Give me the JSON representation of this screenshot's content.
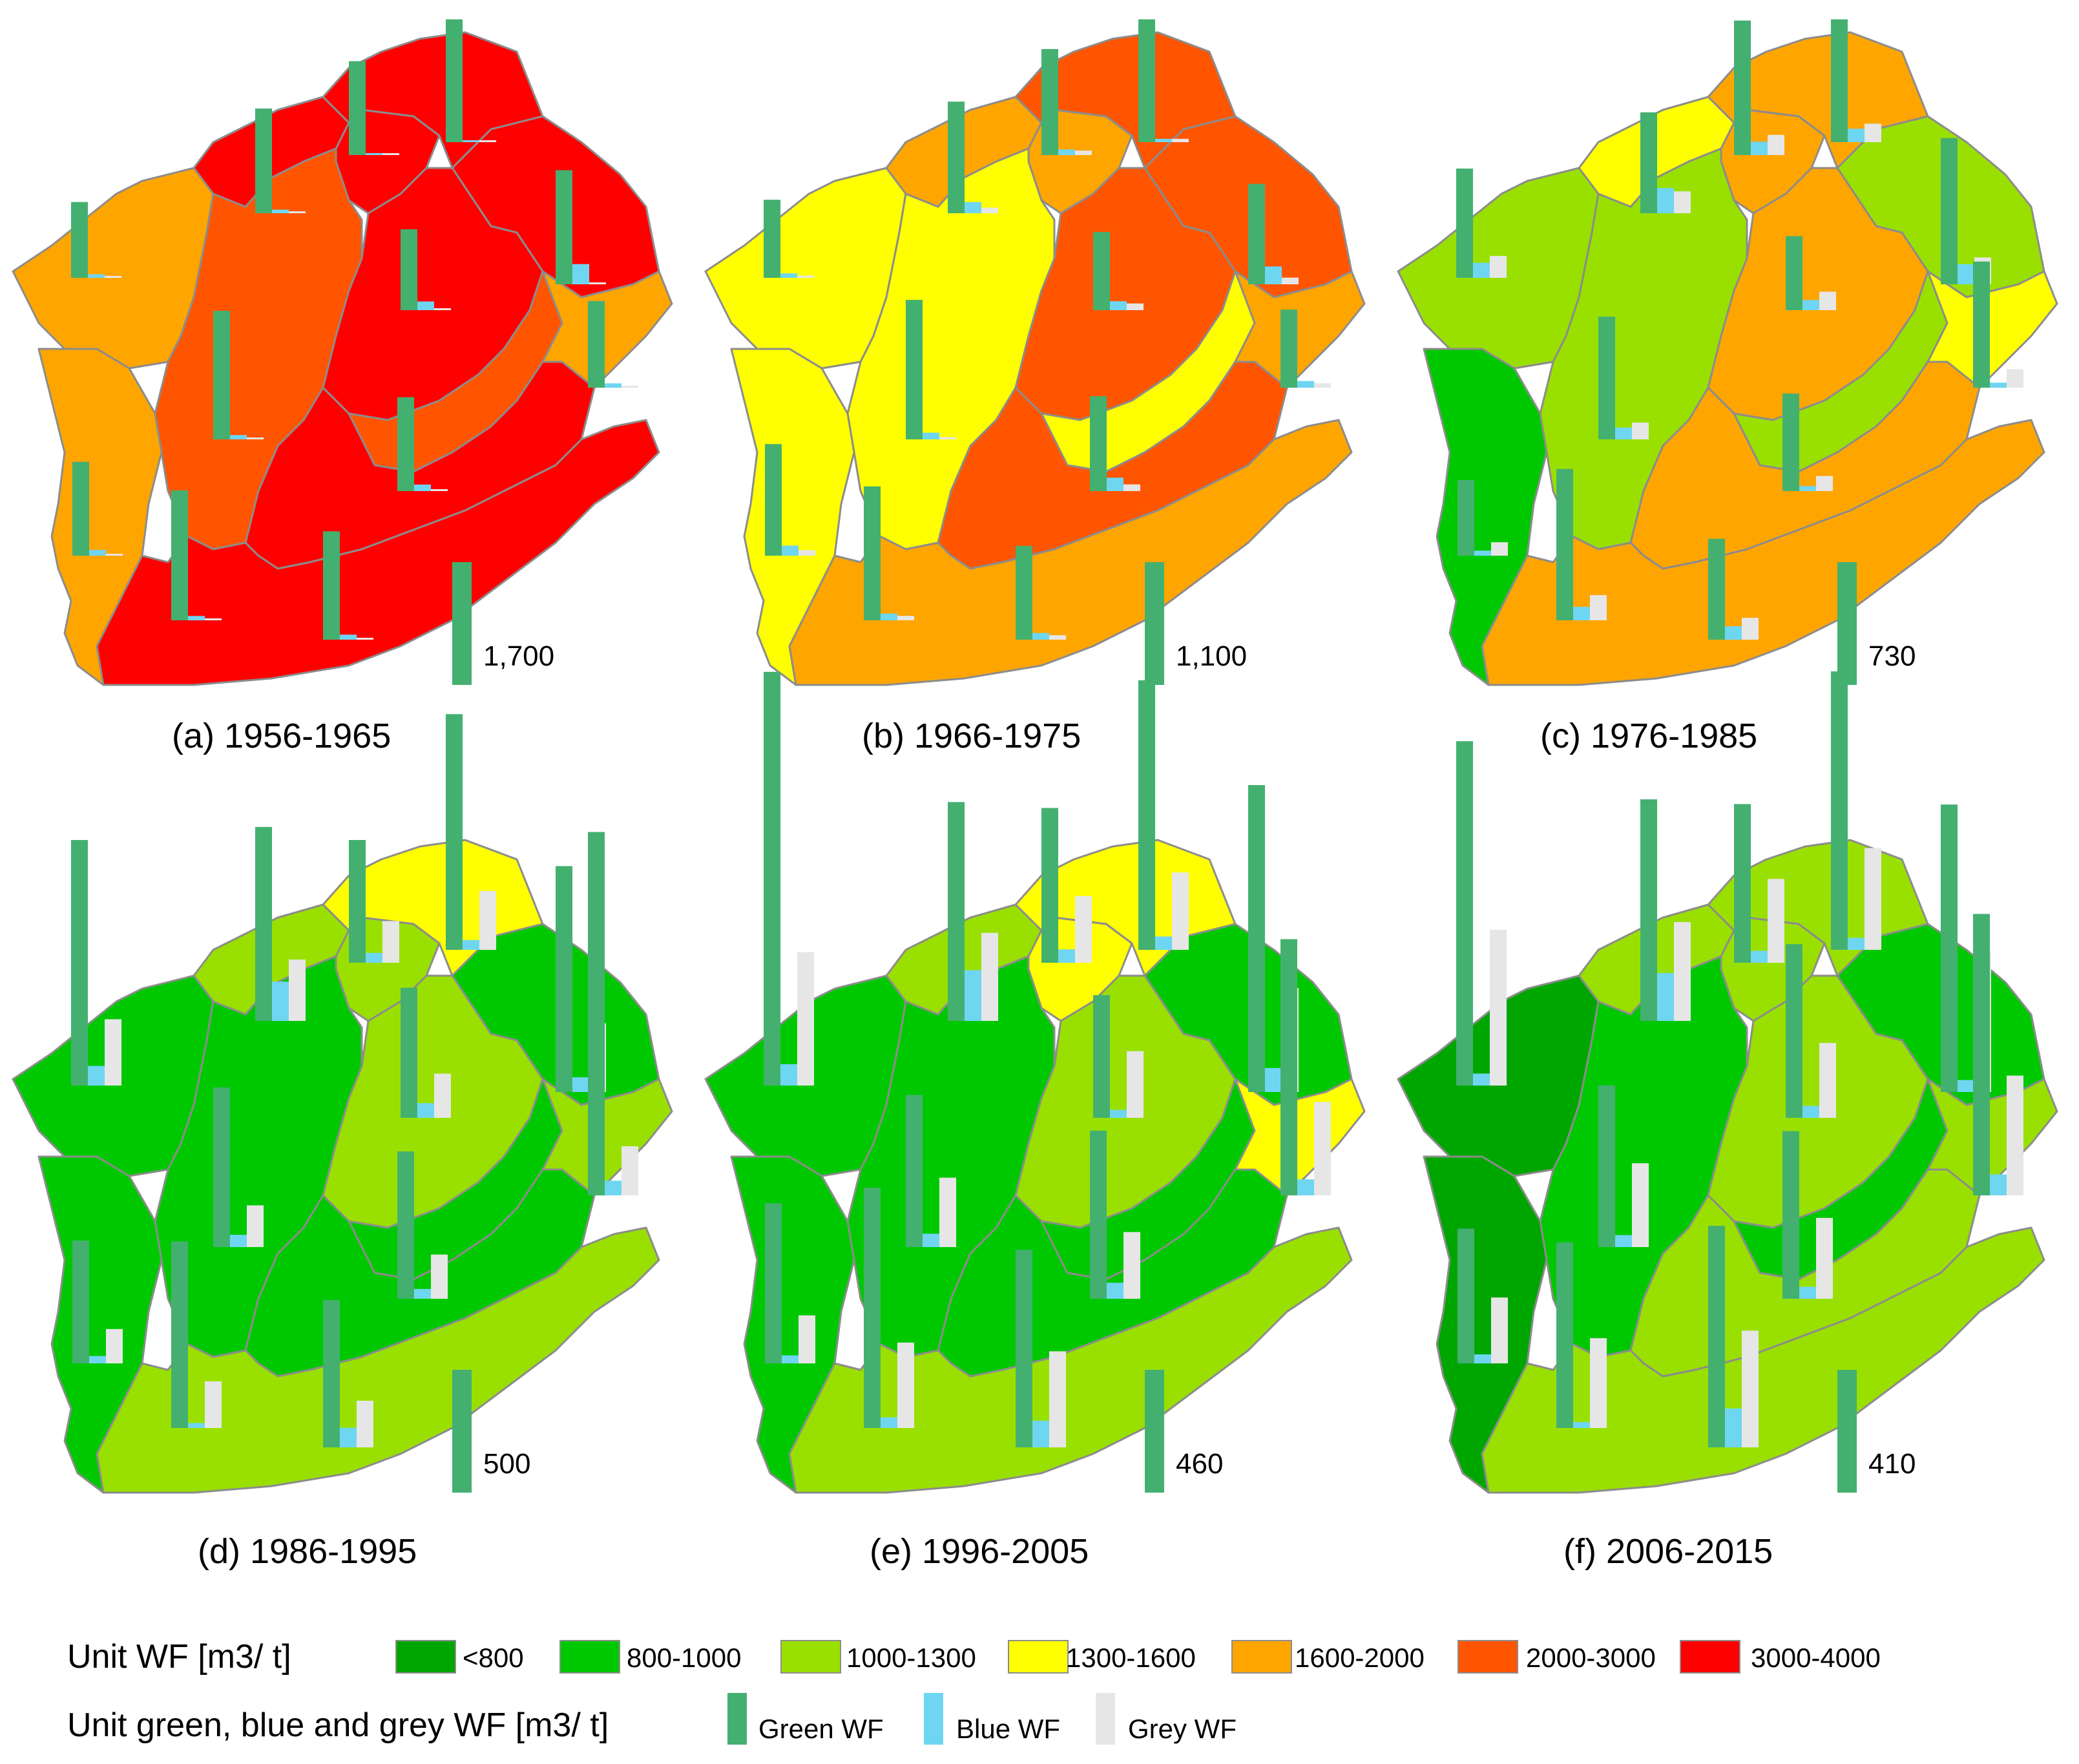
{
  "colors": {
    "<800": "#00a600",
    "800-1000": "#00c800",
    "1000-1300": "#99e000",
    "1300-1600": "#ffff00",
    "1600-2000": "#ffa500",
    "2000-3000": "#ff5500",
    "3000-4000": "#ff0000",
    "green_wf": "#44b070",
    "blue_wf": "#6fd6f2",
    "grey_wf": "#e6e6e6",
    "border": "#8c8c8c"
  },
  "panels": [
    {
      "caption": "(a) 1956-1965",
      "scale_value": 1700,
      "scale_label": "1,700",
      "region_classes": [
        "3000-4000",
        "3000-4000",
        "3000-4000",
        "1600-2000",
        "3000-4000",
        "2000-3000",
        "3000-4000",
        "1600-2000",
        "2000-3000",
        "1600-2000",
        "3000-4000",
        "3000-4000"
      ],
      "bars": [
        {
          "green": 1700,
          "blue": 20,
          "grey": 5
        },
        {
          "green": 1450,
          "blue": 50,
          "grey": 5
        },
        {
          "green": 1580,
          "blue": 280,
          "grey": 10
        },
        {
          "green": 1050,
          "blue": 50,
          "grey": 5
        },
        {
          "green": 1300,
          "blue": 20,
          "grey": 5
        },
        {
          "green": 1780,
          "blue": 60,
          "grey": 5
        },
        {
          "green": 1120,
          "blue": 120,
          "grey": 20
        },
        {
          "green": 1300,
          "blue": 80,
          "grey": 20
        },
        {
          "green": 1300,
          "blue": 90,
          "grey": 10
        },
        {
          "green": 1200,
          "blue": 60,
          "grey": 10
        },
        {
          "green": 1500,
          "blue": 70,
          "grey": 10
        },
        {
          "green": 1800,
          "blue": 60,
          "grey": 10
        }
      ]
    },
    {
      "caption": "(b) 1966-1975",
      "scale_value": 1100,
      "scale_label": "1,100",
      "region_classes": [
        "2000-3000",
        "1600-2000",
        "2000-3000",
        "1300-1600",
        "1600-2000",
        "1300-1600",
        "2000-3000",
        "1300-1600",
        "1300-1600",
        "1600-2000",
        "2000-3000",
        "1600-2000"
      ],
      "bars": [
        {
          "green": 1100,
          "blue": 30,
          "grey": 30
        },
        {
          "green": 1000,
          "blue": 100,
          "grey": 50
        },
        {
          "green": 900,
          "blue": 160,
          "grey": 60
        },
        {
          "green": 700,
          "blue": 40,
          "grey": 20
        },
        {
          "green": 950,
          "blue": 50,
          "grey": 40
        },
        {
          "green": 1250,
          "blue": 60,
          "grey": 20
        },
        {
          "green": 700,
          "blue": 80,
          "grey": 60
        },
        {
          "green": 1000,
          "blue": 90,
          "grey": 50
        },
        {
          "green": 850,
          "blue": 120,
          "grey": 60
        },
        {
          "green": 700,
          "blue": 60,
          "grey": 40
        },
        {
          "green": 840,
          "blue": 60,
          "grey": 40
        },
        {
          "green": 1200,
          "blue": 60,
          "grey": 40
        }
      ]
    },
    {
      "caption": "(c) 1976-1985",
      "scale_value": 730,
      "scale_label": "730",
      "region_classes": [
        "1600-2000",
        "1300-1600",
        "1000-1300",
        "1000-1300",
        "1600-2000",
        "1000-1300",
        "1600-2000",
        "800-1000",
        "1000-1300",
        "1300-1600",
        "1600-2000",
        "1600-2000"
      ],
      "bars": [
        {
          "green": 730,
          "blue": 80,
          "grey": 110
        },
        {
          "green": 600,
          "blue": 150,
          "grey": 130
        },
        {
          "green": 870,
          "blue": 120,
          "grey": 160
        },
        {
          "green": 650,
          "blue": 90,
          "grey": 130
        },
        {
          "green": 800,
          "blue": 80,
          "grey": 120
        },
        {
          "green": 730,
          "blue": 70,
          "grey": 100
        },
        {
          "green": 440,
          "blue": 60,
          "grey": 110
        },
        {
          "green": 450,
          "blue": 30,
          "grey": 80
        },
        {
          "green": 580,
          "blue": 30,
          "grey": 90
        },
        {
          "green": 750,
          "blue": 30,
          "grey": 110
        },
        {
          "green": 600,
          "blue": 80,
          "grey": 130
        },
        {
          "green": 900,
          "blue": 80,
          "grey": 150
        }
      ]
    },
    {
      "caption": "(d) 1986-1995",
      "scale_value": 500,
      "scale_label": "500",
      "region_classes": [
        "1300-1600",
        "1000-1300",
        "800-1000",
        "800-1000",
        "1000-1300",
        "800-1000",
        "1000-1300",
        "800-1000",
        "800-1000",
        "1000-1300",
        "800-1000",
        "1000-1300"
      ],
      "bars": [
        {
          "green": 960,
          "blue": 40,
          "grey": 240
        },
        {
          "green": 790,
          "blue": 160,
          "grey": 250
        },
        {
          "green": 920,
          "blue": 60,
          "grey": 280
        },
        {
          "green": 1000,
          "blue": 80,
          "grey": 270
        },
        {
          "green": 500,
          "blue": 40,
          "grey": 170
        },
        {
          "green": 650,
          "blue": 50,
          "grey": 170
        },
        {
          "green": 530,
          "blue": 60,
          "grey": 180
        },
        {
          "green": 500,
          "blue": 30,
          "grey": 140
        },
        {
          "green": 600,
          "blue": 40,
          "grey": 180
        },
        {
          "green": 1480,
          "blue": 60,
          "grey": 200
        },
        {
          "green": 600,
          "blue": 80,
          "grey": 190
        },
        {
          "green": 760,
          "blue": 20,
          "grey": 190
        }
      ]
    },
    {
      "caption": "(e) 1996-2005",
      "scale_value": 460,
      "scale_label": "460",
      "region_classes": [
        "1300-1600",
        "1000-1300",
        "800-1000",
        "800-1000",
        "1300-1600",
        "800-1000",
        "1000-1300",
        "800-1000",
        "800-1000",
        "1300-1600",
        "800-1000",
        "1000-1300"
      ],
      "bars": [
        {
          "green": 1010,
          "blue": 50,
          "grey": 290
        },
        {
          "green": 820,
          "blue": 190,
          "grey": 330
        },
        {
          "green": 1150,
          "blue": 90,
          "grey": 390
        },
        {
          "green": 1550,
          "blue": 80,
          "grey": 500
        },
        {
          "green": 580,
          "blue": 50,
          "grey": 250
        },
        {
          "green": 570,
          "blue": 50,
          "grey": 260
        },
        {
          "green": 460,
          "blue": 30,
          "grey": 250
        },
        {
          "green": 600,
          "blue": 30,
          "grey": 180
        },
        {
          "green": 630,
          "blue": 60,
          "grey": 250
        },
        {
          "green": 960,
          "blue": 60,
          "grey": 350
        },
        {
          "green": 740,
          "blue": 100,
          "grey": 360
        },
        {
          "green": 900,
          "blue": 40,
          "grey": 320
        }
      ]
    },
    {
      "caption": "(f) 2006-2015",
      "scale_value": 410,
      "scale_label": "410",
      "region_classes": [
        "1000-1300",
        "1000-1300",
        "800-1000",
        "<800",
        "1000-1300",
        "800-1000",
        "1000-1300",
        "<800",
        "800-1000",
        "1000-1300",
        "1000-1300",
        "1000-1300"
      ],
      "bars": [
        {
          "green": 930,
          "blue": 40,
          "grey": 340
        },
        {
          "green": 740,
          "blue": 160,
          "grey": 330
        },
        {
          "green": 960,
          "blue": 40,
          "grey": 470
        },
        {
          "green": 1150,
          "blue": 40,
          "grey": 520
        },
        {
          "green": 530,
          "blue": 40,
          "grey": 280
        },
        {
          "green": 540,
          "blue": 40,
          "grey": 280
        },
        {
          "green": 580,
          "blue": 40,
          "grey": 250
        },
        {
          "green": 450,
          "blue": 30,
          "grey": 220
        },
        {
          "green": 560,
          "blue": 40,
          "grey": 270
        },
        {
          "green": 940,
          "blue": 70,
          "grey": 400
        },
        {
          "green": 740,
          "blue": 130,
          "grey": 390
        },
        {
          "green": 620,
          "blue": 20,
          "grey": 300
        }
      ]
    }
  ],
  "legend": {
    "unit_wf_title": "Unit WF [m3/ t]",
    "classes": [
      "<800",
      "800-1000",
      "1000-1300",
      "1300-1600",
      "1600-2000",
      "2000-3000",
      "3000-4000"
    ],
    "bars_title": "Unit green, blue and grey WF [m3/ t]",
    "green_label": "Green WF",
    "blue_label": "Blue WF",
    "grey_label": "Grey WF"
  }
}
